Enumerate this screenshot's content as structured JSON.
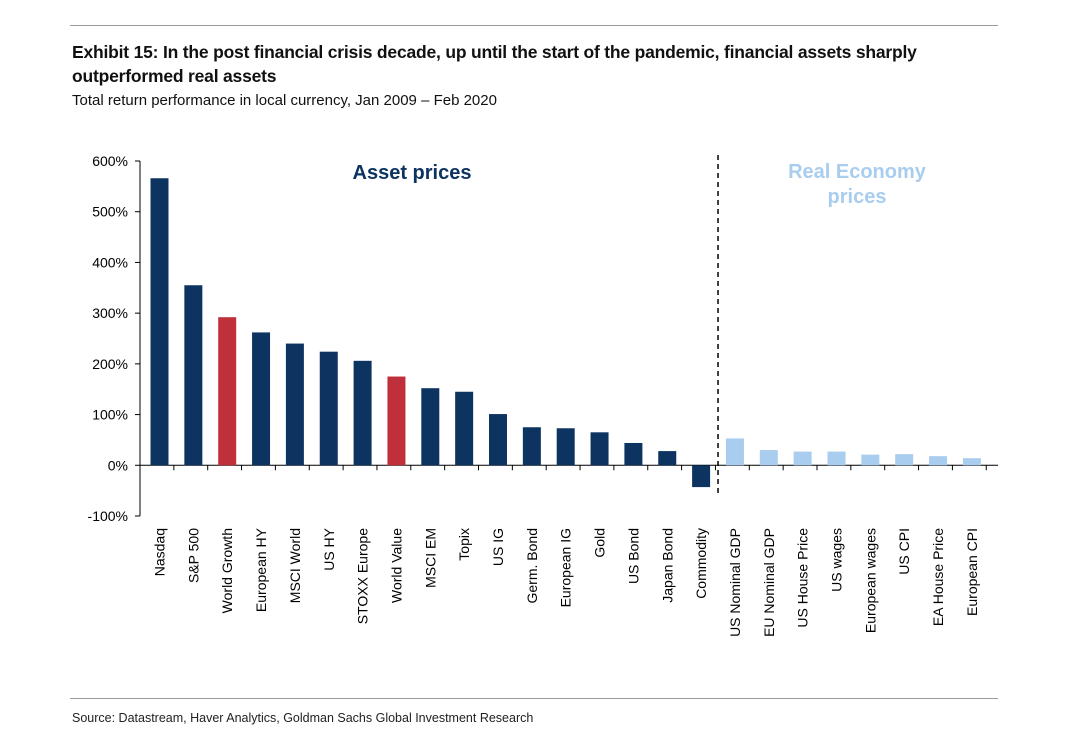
{
  "header": {
    "title": "Exhibit 15: In the post financial crisis decade, up until the start of the pandemic, financial assets sharply outperformed real assets",
    "subtitle": "Total return performance in local currency, Jan 2009 – Feb 2020"
  },
  "footer": {
    "source": "Source: Datastream, Haver Analytics, Goldman Sachs Global Investment Research"
  },
  "colors": {
    "asset": "#0d3461",
    "highlight": "#c0303a",
    "real_economy": "#a9cdee"
  },
  "chart_data": {
    "type": "bar",
    "ylim": [
      -100,
      600
    ],
    "yticks": [
      -100,
      0,
      100,
      200,
      300,
      400,
      500,
      600
    ],
    "ytick_labels": [
      "-100%",
      "0%",
      "100%",
      "200%",
      "300%",
      "400%",
      "500%",
      "600%"
    ],
    "grid": false,
    "categories": [
      "Nasdaq",
      "S&P 500",
      "World Growth",
      "European HY",
      "MSCI World",
      "US HY",
      "STOXX Europe",
      "World Value",
      "MSCI EM",
      "Topix",
      "US IG",
      "Germ. Bond",
      "European IG",
      "Gold",
      "US Bond",
      "Japan Bond",
      "Commodity",
      "US Nominal GDP",
      "EU Nominal GDP",
      "US House Price",
      "US wages",
      "European wages",
      "US CPI",
      "EA House Price",
      "European CPI"
    ],
    "values": [
      566,
      355,
      292,
      262,
      240,
      224,
      206,
      175,
      152,
      145,
      101,
      75,
      73,
      65,
      44,
      28,
      -43,
      53,
      30,
      27,
      27,
      21,
      22,
      18,
      14
    ],
    "groups": [
      "asset",
      "asset",
      "highlight",
      "asset",
      "asset",
      "asset",
      "asset",
      "highlight",
      "asset",
      "asset",
      "asset",
      "asset",
      "asset",
      "asset",
      "asset",
      "asset",
      "asset",
      "real_economy",
      "real_economy",
      "real_economy",
      "real_economy",
      "real_economy",
      "real_economy",
      "real_economy",
      "real_economy"
    ],
    "annotations": {
      "asset_prices": "Asset prices",
      "real_economy_line1": "Real Economy",
      "real_economy_line2": "prices"
    }
  }
}
